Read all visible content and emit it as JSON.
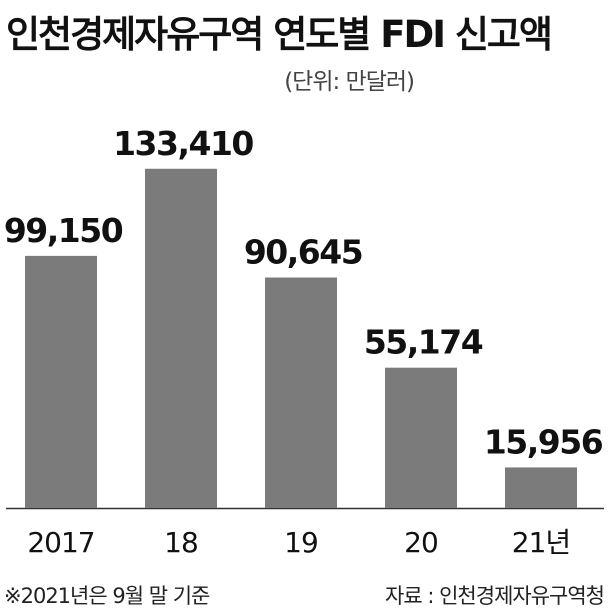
{
  "header": {
    "title": "인천경제자유구역 연도별 FDI 신고액",
    "unit": "(단위: 만달러)"
  },
  "footer": {
    "note": "※2021년은 9월 말 기준",
    "source": "자료 : 인천경제자유구역청"
  },
  "colors": {
    "bar": "#7b7b7b",
    "axis": "#333333",
    "text": "#111111"
  },
  "chart_data": {
    "type": "bar",
    "title": "인천경제자유구역 연도별 FDI 신고액",
    "categories": [
      "2017",
      "18",
      "19",
      "20",
      "21년"
    ],
    "values": [
      99150,
      133410,
      90645,
      55174,
      15956
    ],
    "data_labels": [
      "99,150",
      "133,410",
      "90,645",
      "55,174",
      "15,956"
    ],
    "xlabel": "",
    "ylabel": "",
    "ylim": [
      0,
      140000
    ],
    "grid": false,
    "legend": "none"
  }
}
